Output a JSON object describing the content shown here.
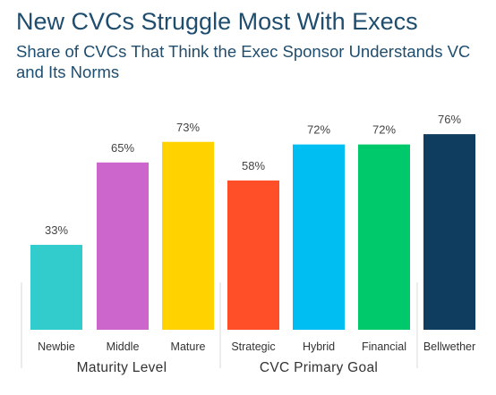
{
  "chart_data": {
    "type": "bar",
    "title": "New CVCs Struggle Most With Execs",
    "subtitle": "Share of CVCs That Think the Exec Sponsor Understands VC and Its Norms",
    "categories": [
      "Newbie",
      "Middle",
      "Mature",
      "Strategic",
      "Hybrid",
      "Financial",
      "Bellwether"
    ],
    "values": [
      33,
      65,
      73,
      58,
      72,
      72,
      76
    ],
    "value_labels": [
      "33%",
      "65%",
      "73%",
      "58%",
      "72%",
      "72%",
      "76%"
    ],
    "colors": [
      "#33cccc",
      "#cc66cc",
      "#ffd200",
      "#ff4f28",
      "#00bdf2",
      "#00c96b",
      "#0f3d60"
    ],
    "groups": [
      {
        "label": "Maturity Level",
        "categories": [
          "Newbie",
          "Middle",
          "Mature"
        ]
      },
      {
        "label": "CVC Primary Goal",
        "categories": [
          "Strategic",
          "Hybrid",
          "Financial"
        ]
      }
    ],
    "unit": "%",
    "ylim": [
      0,
      100
    ],
    "grid": false,
    "legend": "none",
    "xlabel": "",
    "ylabel": ""
  },
  "colors": {
    "title": "#1f4d6e",
    "separator": "#d9d9d9"
  }
}
